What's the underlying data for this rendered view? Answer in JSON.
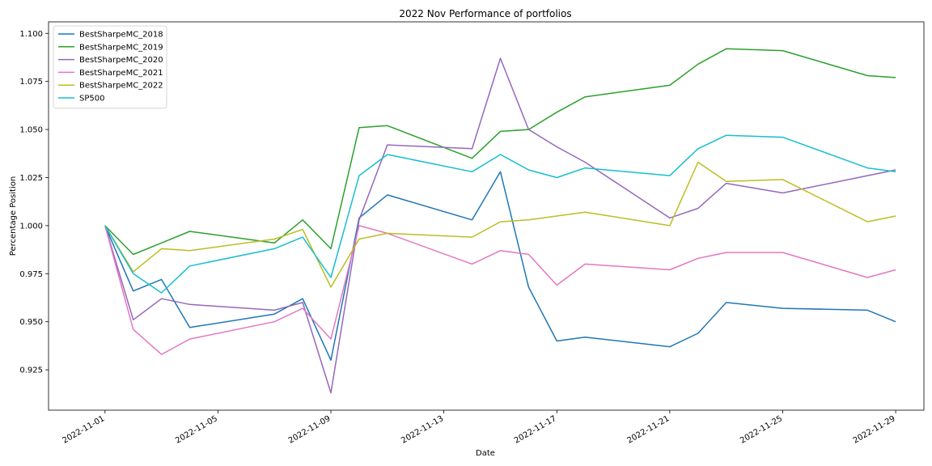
{
  "chart_data": {
    "type": "line",
    "title": "2022 Nov Performance of portfolios",
    "xlabel": "Date",
    "ylabel": "Percentage Position",
    "xlim": [
      "2022-10-30",
      "2022-11-30"
    ],
    "ylim": [
      0.904,
      1.106
    ],
    "x_ticks": [
      "2022-11-01",
      "2022-11-05",
      "2022-11-09",
      "2022-11-13",
      "2022-11-17",
      "2022-11-21",
      "2022-11-25",
      "2022-11-29"
    ],
    "y_ticks": [
      0.925,
      0.95,
      0.975,
      1.0,
      1.025,
      1.05,
      1.075,
      1.1
    ],
    "y_tick_labels": [
      "0.925",
      "0.950",
      "0.975",
      "1.000",
      "1.025",
      "1.050",
      "1.075",
      "1.100"
    ],
    "legend_position": "top-left",
    "grid": false,
    "x": [
      "2022-11-01",
      "2022-11-02",
      "2022-11-03",
      "2022-11-04",
      "2022-11-07",
      "2022-11-08",
      "2022-11-09",
      "2022-11-10",
      "2022-11-11",
      "2022-11-14",
      "2022-11-15",
      "2022-11-16",
      "2022-11-17",
      "2022-11-18",
      "2022-11-21",
      "2022-11-22",
      "2022-11-23",
      "2022-11-25",
      "2022-11-28",
      "2022-11-29"
    ],
    "series": [
      {
        "name": "BestSharpeMC_2018",
        "color": "#1f77b4",
        "values": [
          1.0,
          0.966,
          0.972,
          0.947,
          0.954,
          0.962,
          0.93,
          1.004,
          1.016,
          1.003,
          1.028,
          0.968,
          0.94,
          0.942,
          0.937,
          0.944,
          0.96,
          0.957,
          0.956,
          0.95
        ]
      },
      {
        "name": "BestSharpeMC_2019",
        "color": "#2ca02c",
        "values": [
          1.0,
          0.985,
          0.991,
          0.997,
          0.991,
          1.003,
          0.988,
          1.051,
          1.052,
          1.035,
          1.049,
          1.05,
          1.059,
          1.067,
          1.073,
          1.084,
          1.092,
          1.091,
          1.078,
          1.077
        ]
      },
      {
        "name": "BestSharpeMC_2020",
        "color": "#9467bd",
        "values": [
          1.0,
          0.951,
          0.962,
          0.959,
          0.956,
          0.96,
          0.913,
          1.003,
          1.042,
          1.04,
          1.087,
          1.05,
          1.041,
          1.033,
          1.004,
          1.009,
          1.022,
          1.017,
          1.026,
          1.029
        ]
      },
      {
        "name": "BestSharpeMC_2021",
        "color": "#e377c2",
        "values": [
          1.0,
          0.946,
          0.933,
          0.941,
          0.95,
          0.957,
          0.941,
          1.0,
          0.996,
          0.98,
          0.987,
          0.985,
          0.969,
          0.98,
          0.977,
          0.983,
          0.986,
          0.986,
          0.973,
          0.977
        ]
      },
      {
        "name": "BestSharpeMC_2022",
        "color": "#bcbd22",
        "values": [
          1.0,
          0.976,
          0.988,
          0.987,
          0.993,
          0.998,
          0.968,
          0.993,
          0.996,
          0.994,
          1.002,
          1.003,
          1.005,
          1.007,
          1.0,
          1.033,
          1.023,
          1.024,
          1.002,
          1.005
        ]
      },
      {
        "name": "SP500",
        "color": "#17becf",
        "values": [
          1.0,
          0.975,
          0.965,
          0.979,
          0.988,
          0.994,
          0.973,
          1.026,
          1.037,
          1.028,
          1.037,
          1.029,
          1.025,
          1.03,
          1.026,
          1.04,
          1.047,
          1.046,
          1.03,
          1.028
        ]
      }
    ]
  }
}
